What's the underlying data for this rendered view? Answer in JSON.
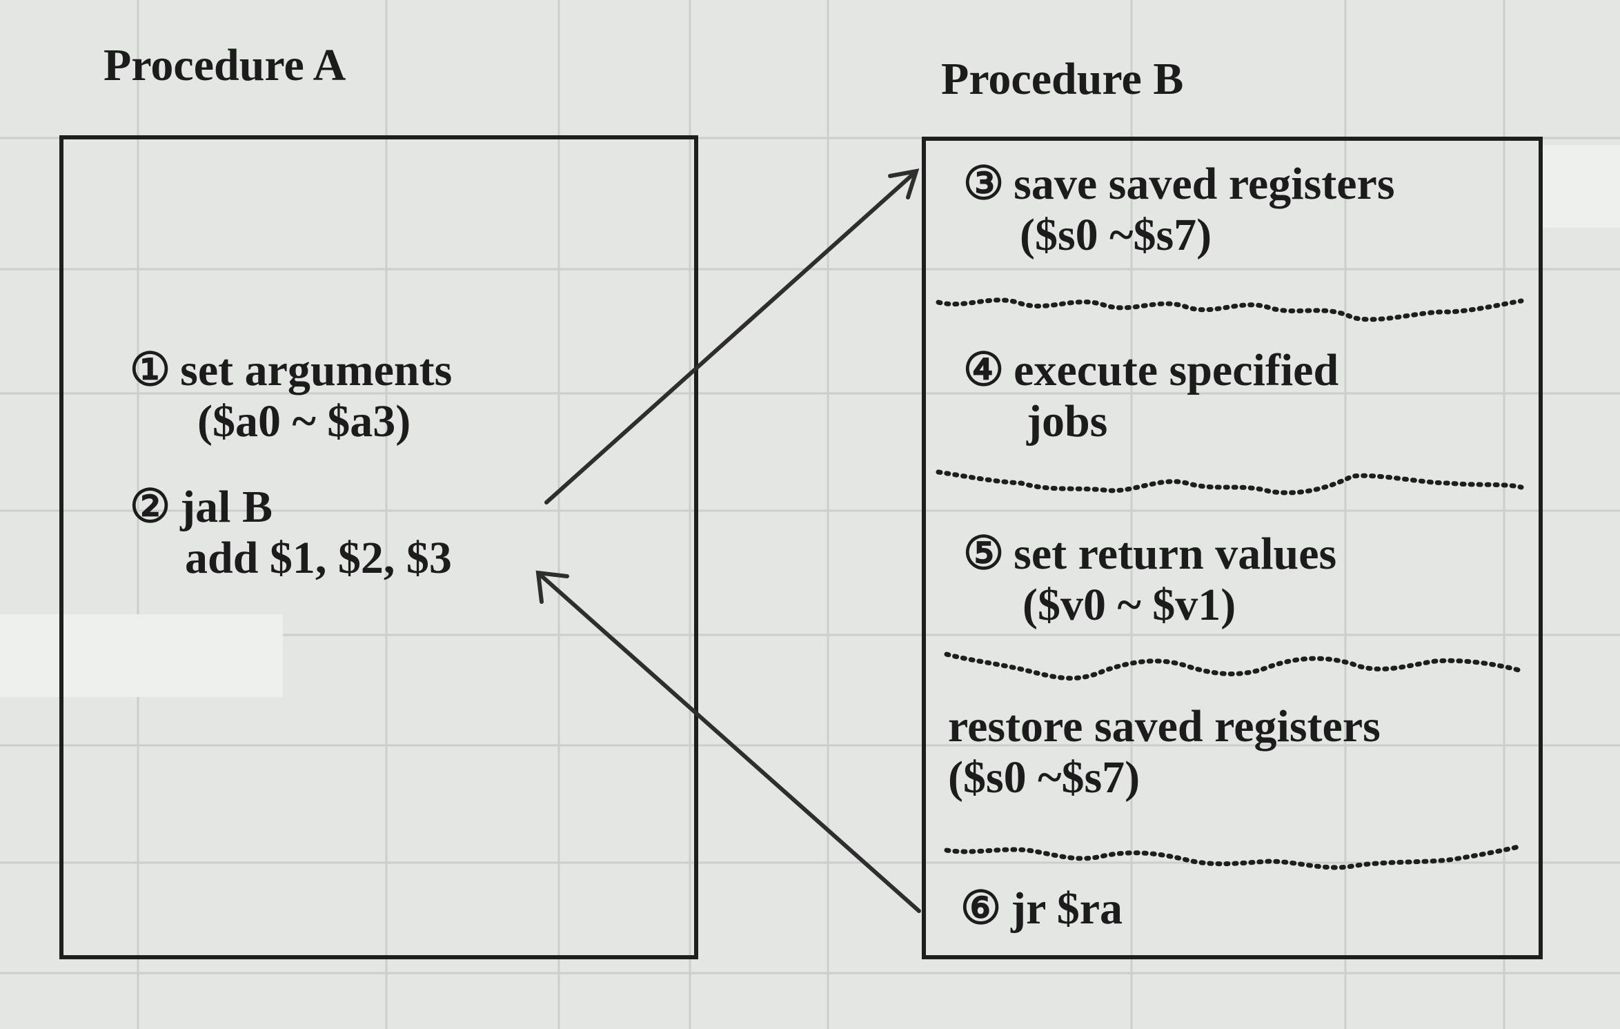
{
  "procedure_a": {
    "title": "Procedure A",
    "steps": [
      {
        "num": "①",
        "text": "set arguments",
        "sub": "($a0 ~ $a3)"
      },
      {
        "num": "②",
        "text": "jal  B",
        "sub": "add $1, $2, $3"
      }
    ]
  },
  "procedure_b": {
    "title": "Procedure B",
    "steps": [
      {
        "num": "③",
        "text": "save saved registers",
        "sub": "($s0 ~$s7)"
      },
      {
        "num": "④",
        "text": "execute specified",
        "sub": "jobs"
      },
      {
        "num": "⑤",
        "text": "set return values",
        "sub": "($v0 ~ $v1)"
      },
      {
        "num": "",
        "text": "restore saved registers",
        "sub": "($s0 ~$s7)"
      },
      {
        "num": "⑥",
        "text": "jr $ra",
        "sub": ""
      }
    ]
  },
  "colors": {
    "background": "#e3e6e2",
    "ink": "#1c1c1c",
    "arrow": "#2e2e2e",
    "grid": "#c9ccc8"
  }
}
